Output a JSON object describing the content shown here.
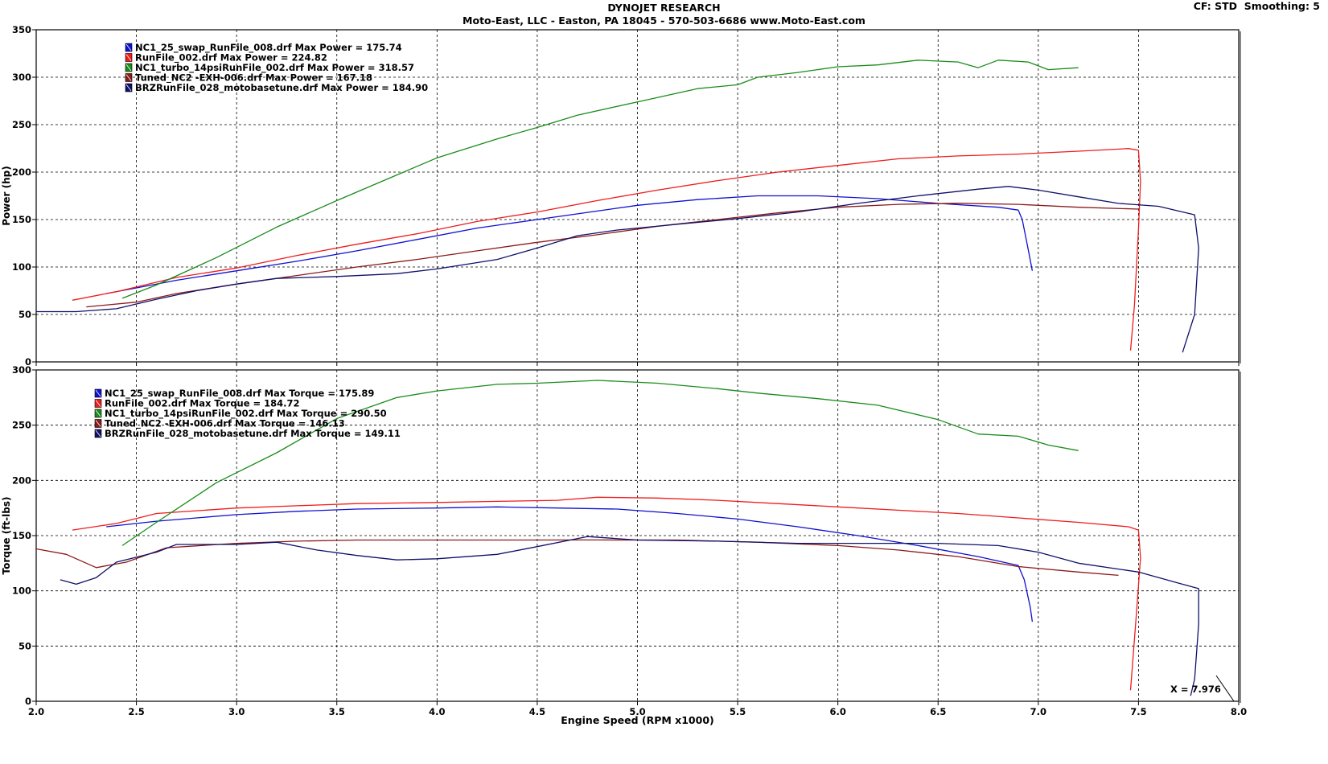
{
  "header": {
    "title": "DYNOJET RESEARCH",
    "subtitle": "Moto-East, LLC - Easton, PA 18045 - 570-503-6686 www.Moto-East.com",
    "cf_label": "CF: STD",
    "smoothing_label": "Smoothing: 5"
  },
  "colors": {
    "blue": "#1010d0",
    "red": "#ee1c1c",
    "green": "#1a8c1a",
    "darkred": "#8b1a1a",
    "navy": "#10106a"
  },
  "cursor_readout": "X = 7.976",
  "chart_data": [
    {
      "type": "line",
      "ylabel": "Power (hp)",
      "xlabel": "",
      "xlim": [
        2.0,
        8.0
      ],
      "ylim": [
        0,
        350
      ],
      "xticks": [
        "2.0",
        "2.5",
        "3.0",
        "3.5",
        "4.0",
        "4.5",
        "5.0",
        "5.5",
        "6.0",
        "6.5",
        "7.0",
        "7.5",
        "8.0"
      ],
      "yticks": [
        "0",
        "50",
        "100",
        "150",
        "200",
        "250",
        "300",
        "350"
      ],
      "grid": true,
      "legend_position": "top-left",
      "legend": [
        {
          "text": "NC1_25_swap_RunFile_008.drf Max Power = 175.74",
          "color": "#1010d0"
        },
        {
          "text": "RunFile_002.drf Max Power = 224.82",
          "color": "#ee1c1c"
        },
        {
          "text": "NC1_turbo_14psiRunFile_002.drf Max Power = 318.57",
          "color": "#1a8c1a"
        },
        {
          "text": "Tuned_NC2 -EXH-006.drf Max Power = 167.18",
          "color": "#8b1a1a"
        },
        {
          "text": "BRZRunFile_028_motobasetune.drf Max Power = 184.90",
          "color": "#10106a"
        }
      ],
      "series": [
        {
          "color": "#1010d0",
          "points": [
            [
              2.35,
              72
            ],
            [
              2.5,
              78
            ],
            [
              2.7,
              86
            ],
            [
              3.0,
              96
            ],
            [
              3.3,
              106
            ],
            [
              3.6,
              117
            ],
            [
              3.9,
              129
            ],
            [
              4.2,
              141
            ],
            [
              4.5,
              150
            ],
            [
              4.8,
              159
            ],
            [
              5.0,
              165
            ],
            [
              5.3,
              171
            ],
            [
              5.6,
              175
            ],
            [
              5.9,
              175
            ],
            [
              6.2,
              172
            ],
            [
              6.5,
              167
            ],
            [
              6.8,
              163
            ],
            [
              6.9,
              160
            ],
            [
              6.92,
              150
            ],
            [
              6.95,
              118
            ],
            [
              6.97,
              96
            ]
          ]
        },
        {
          "color": "#ee1c1c",
          "points": [
            [
              2.18,
              65
            ],
            [
              2.4,
              74
            ],
            [
              2.7,
              89
            ],
            [
              3.0,
              99
            ],
            [
              3.3,
              112
            ],
            [
              3.6,
              124
            ],
            [
              3.9,
              135
            ],
            [
              4.2,
              148
            ],
            [
              4.5,
              158
            ],
            [
              4.8,
              170
            ],
            [
              5.1,
              181
            ],
            [
              5.4,
              191
            ],
            [
              5.7,
              200
            ],
            [
              6.0,
              207
            ],
            [
              6.3,
              214
            ],
            [
              6.6,
              217
            ],
            [
              6.9,
              219
            ],
            [
              7.2,
              222
            ],
            [
              7.45,
              224.8
            ],
            [
              7.5,
              223
            ],
            [
              7.51,
              190
            ],
            [
              7.5,
              140
            ],
            [
              7.48,
              60
            ],
            [
              7.46,
              12
            ]
          ]
        },
        {
          "color": "#1a8c1a",
          "points": [
            [
              2.43,
              67
            ],
            [
              2.6,
              81
            ],
            [
              2.9,
              110
            ],
            [
              3.2,
              142
            ],
            [
              3.5,
              170
            ],
            [
              3.8,
              197
            ],
            [
              4.0,
              215
            ],
            [
              4.3,
              235
            ],
            [
              4.5,
              247
            ],
            [
              4.7,
              260
            ],
            [
              5.0,
              274
            ],
            [
              5.3,
              288
            ],
            [
              5.5,
              292
            ],
            [
              5.6,
              300
            ],
            [
              5.8,
              305
            ],
            [
              6.0,
              311
            ],
            [
              6.2,
              313
            ],
            [
              6.4,
              318
            ],
            [
              6.6,
              316
            ],
            [
              6.7,
              310
            ],
            [
              6.8,
              318
            ],
            [
              6.95,
              316
            ],
            [
              7.05,
              308
            ],
            [
              7.2,
              310
            ]
          ]
        },
        {
          "color": "#8b1a1a",
          "points": [
            [
              2.25,
              58
            ],
            [
              2.5,
              63
            ],
            [
              2.7,
              72
            ],
            [
              3.0,
              82
            ],
            [
              3.3,
              91
            ],
            [
              3.6,
              100
            ],
            [
              3.9,
              108
            ],
            [
              4.2,
              117
            ],
            [
              4.5,
              126
            ],
            [
              4.8,
              134
            ],
            [
              5.1,
              143
            ],
            [
              5.4,
              150
            ],
            [
              5.7,
              157
            ],
            [
              6.0,
              163
            ],
            [
              6.3,
              166
            ],
            [
              6.6,
              167.2
            ],
            [
              6.9,
              166
            ],
            [
              7.2,
              163
            ],
            [
              7.5,
              161
            ]
          ]
        },
        {
          "color": "#10106a",
          "points": [
            [
              2.0,
              53
            ],
            [
              2.2,
              53
            ],
            [
              2.4,
              56
            ],
            [
              2.6,
              66
            ],
            [
              2.8,
              75
            ],
            [
              3.0,
              82
            ],
            [
              3.2,
              88
            ],
            [
              3.5,
              90
            ],
            [
              3.8,
              93
            ],
            [
              4.0,
              98
            ],
            [
              4.3,
              108
            ],
            [
              4.5,
              120
            ],
            [
              4.7,
              133
            ],
            [
              4.9,
              139
            ],
            [
              5.2,
              145
            ],
            [
              5.5,
              151
            ],
            [
              5.8,
              158
            ],
            [
              6.1,
              167
            ],
            [
              6.4,
              175
            ],
            [
              6.7,
              182
            ],
            [
              6.85,
              184.9
            ],
            [
              7.0,
              181
            ],
            [
              7.2,
              174
            ],
            [
              7.4,
              167
            ],
            [
              7.6,
              164
            ],
            [
              7.78,
              155
            ],
            [
              7.8,
              120
            ],
            [
              7.78,
              50
            ],
            [
              7.72,
              10
            ]
          ]
        }
      ]
    },
    {
      "type": "line",
      "ylabel": "Torque (ft-lbs)",
      "xlabel": "Engine Speed (RPM x1000)",
      "xlim": [
        2.0,
        8.0
      ],
      "ylim": [
        0,
        300
      ],
      "xticks": [
        "2.0",
        "2.5",
        "3.0",
        "3.5",
        "4.0",
        "4.5",
        "5.0",
        "5.5",
        "6.0",
        "6.5",
        "7.0",
        "7.5",
        "8.0"
      ],
      "yticks": [
        "0",
        "50",
        "100",
        "150",
        "200",
        "250",
        "300"
      ],
      "grid": true,
      "legend_position": "top-left",
      "legend": [
        {
          "text": "NC1_25_swap_RunFile_008.drf Max Torque = 175.89",
          "color": "#1010d0"
        },
        {
          "text": "RunFile_002.drf Max Torque = 184.72",
          "color": "#ee1c1c"
        },
        {
          "text": "NC1_turbo_14psiRunFile_002.drf Max Torque = 290.50",
          "color": "#1a8c1a"
        },
        {
          "text": "Tuned_NC2 -EXH-006.drf Max Torque = 146.13",
          "color": "#8b1a1a"
        },
        {
          "text": "BRZRunFile_028_motobasetune.drf Max Torque = 149.11",
          "color": "#10106a"
        }
      ],
      "series": [
        {
          "color": "#1010d0",
          "points": [
            [
              2.35,
              158
            ],
            [
              2.6,
              163
            ],
            [
              3.0,
              169
            ],
            [
              3.3,
              172
            ],
            [
              3.6,
              174
            ],
            [
              4.0,
              175
            ],
            [
              4.3,
              176
            ],
            [
              4.6,
              175
            ],
            [
              4.9,
              174
            ],
            [
              5.2,
              170
            ],
            [
              5.5,
              165
            ],
            [
              5.8,
              158
            ],
            [
              6.1,
              150
            ],
            [
              6.4,
              141
            ],
            [
              6.7,
              131
            ],
            [
              6.9,
              123
            ],
            [
              6.93,
              110
            ],
            [
              6.96,
              85
            ],
            [
              6.97,
              72
            ]
          ]
        },
        {
          "color": "#ee1c1c",
          "points": [
            [
              2.18,
              155
            ],
            [
              2.4,
              161
            ],
            [
              2.6,
              170
            ],
            [
              3.0,
              175
            ],
            [
              3.3,
              177
            ],
            [
              3.6,
              179
            ],
            [
              4.0,
              180
            ],
            [
              4.3,
              181
            ],
            [
              4.6,
              182
            ],
            [
              4.8,
              184.7
            ],
            [
              5.1,
              184
            ],
            [
              5.4,
              182
            ],
            [
              5.7,
              179
            ],
            [
              6.0,
              176
            ],
            [
              6.3,
              173
            ],
            [
              6.6,
              170
            ],
            [
              6.9,
              166
            ],
            [
              7.2,
              162
            ],
            [
              7.45,
              158
            ],
            [
              7.5,
              155
            ],
            [
              7.51,
              130
            ],
            [
              7.49,
              80
            ],
            [
              7.46,
              10
            ]
          ]
        },
        {
          "color": "#1a8c1a",
          "points": [
            [
              2.43,
              141
            ],
            [
              2.6,
              162
            ],
            [
              2.9,
              198
            ],
            [
              3.2,
              225
            ],
            [
              3.5,
              256
            ],
            [
              3.8,
              275
            ],
            [
              4.0,
              281
            ],
            [
              4.3,
              287
            ],
            [
              4.5,
              288
            ],
            [
              4.8,
              290.5
            ],
            [
              5.1,
              288
            ],
            [
              5.4,
              283
            ],
            [
              5.6,
              279
            ],
            [
              5.9,
              274
            ],
            [
              6.2,
              268
            ],
            [
              6.5,
              255
            ],
            [
              6.7,
              242
            ],
            [
              6.9,
              240
            ],
            [
              7.05,
              232
            ],
            [
              7.2,
              227
            ]
          ]
        },
        {
          "color": "#8b1a1a",
          "points": [
            [
              2.0,
              138
            ],
            [
              2.15,
              133
            ],
            [
              2.3,
              121
            ],
            [
              2.45,
              126
            ],
            [
              2.65,
              139
            ],
            [
              3.0,
              143
            ],
            [
              3.3,
              145
            ],
            [
              3.6,
              146
            ],
            [
              4.0,
              146
            ],
            [
              4.4,
              146
            ],
            [
              4.8,
              146.1
            ],
            [
              5.2,
              146
            ],
            [
              5.6,
              144
            ],
            [
              6.0,
              141
            ],
            [
              6.3,
              137
            ],
            [
              6.6,
              131
            ],
            [
              6.9,
              122
            ],
            [
              7.2,
              117
            ],
            [
              7.4,
              114
            ]
          ]
        },
        {
          "color": "#10106a",
          "points": [
            [
              2.12,
              110
            ],
            [
              2.2,
              106
            ],
            [
              2.3,
              112
            ],
            [
              2.4,
              126
            ],
            [
              2.6,
              135
            ],
            [
              2.7,
              142
            ],
            [
              3.0,
              142
            ],
            [
              3.2,
              144
            ],
            [
              3.4,
              137
            ],
            [
              3.6,
              132
            ],
            [
              3.8,
              128
            ],
            [
              4.0,
              129
            ],
            [
              4.3,
              133
            ],
            [
              4.5,
              140
            ],
            [
              4.75,
              149.1
            ],
            [
              5.0,
              146
            ],
            [
              5.4,
              145
            ],
            [
              5.8,
              143
            ],
            [
              6.2,
              143
            ],
            [
              6.5,
              143
            ],
            [
              6.8,
              141
            ],
            [
              7.0,
              135
            ],
            [
              7.2,
              125
            ],
            [
              7.5,
              117
            ],
            [
              7.7,
              107
            ],
            [
              7.8,
              102
            ],
            [
              7.8,
              70
            ],
            [
              7.78,
              20
            ],
            [
              7.76,
              5
            ]
          ]
        }
      ]
    }
  ]
}
